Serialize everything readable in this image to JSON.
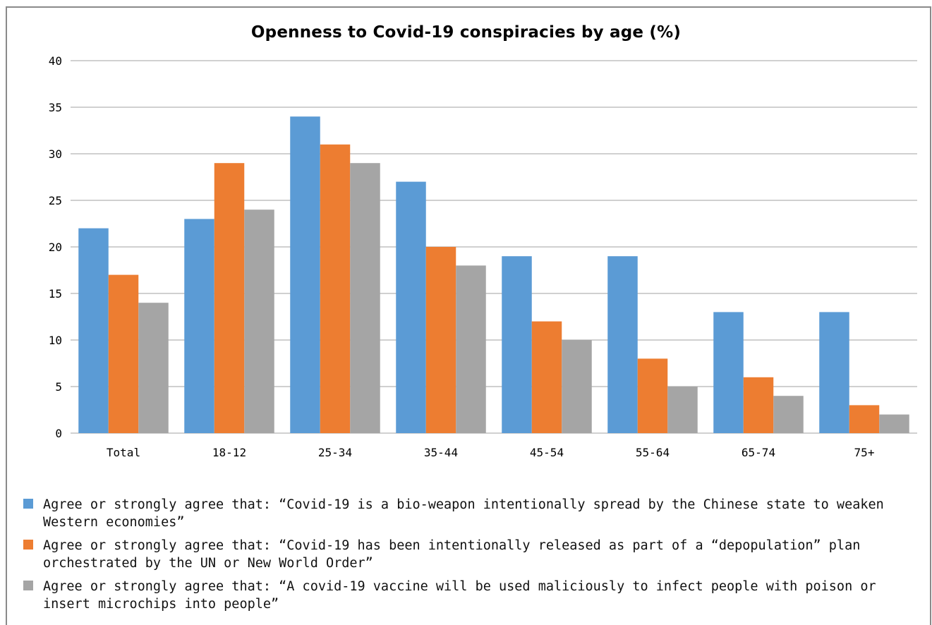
{
  "chart_data": {
    "type": "bar",
    "title": "Openness to Covid-19 conspiracies by age (%)",
    "xlabel": "",
    "ylabel": "",
    "ylim": [
      0,
      40
    ],
    "yticks": [
      0,
      5,
      10,
      15,
      20,
      25,
      30,
      35,
      40
    ],
    "grid": true,
    "legend_position": "bottom",
    "categories": [
      "Total",
      "18-12",
      "25-34",
      "35-44",
      "45-54",
      "55-64",
      "65-74",
      "75+"
    ],
    "series": [
      {
        "name": "Agree or strongly agree that: “Covid-19 is a bio-weapon intentionally spread by the Chinese state to weaken Western economies”",
        "color": "#5b9bd5",
        "values": [
          22,
          23,
          34,
          27,
          19,
          19,
          13,
          13
        ]
      },
      {
        "name": "Agree or strongly agree that: “Covid-19 has been intentionally released as part of a “depopulation” plan orchestrated by the UN or New World Order”",
        "color": "#ed7d31",
        "values": [
          17,
          29,
          31,
          20,
          12,
          8,
          6,
          3
        ]
      },
      {
        "name": "Agree or strongly agree that: “A covid-19 vaccine will be used maliciously to infect people with poison or insert microchips into people”",
        "color": "#a5a5a5",
        "values": [
          14,
          24,
          29,
          18,
          10,
          5,
          4,
          2
        ]
      }
    ]
  }
}
